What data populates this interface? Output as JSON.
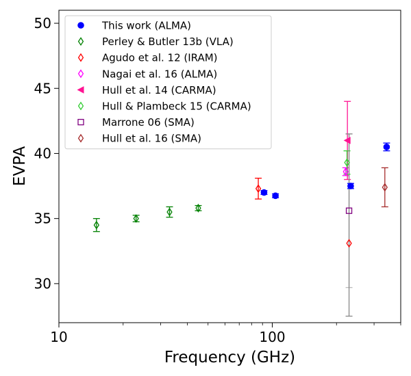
{
  "chart_data": {
    "type": "scatter",
    "title": "",
    "xlabel": "Frequency (GHz)",
    "ylabel": "EVPA",
    "xscale": "log",
    "xlim": [
      10,
      400
    ],
    "ylim": [
      27,
      51
    ],
    "x_ticks": [
      {
        "value": 10,
        "label": "10"
      },
      {
        "value": 100,
        "label": "100"
      }
    ],
    "y_ticks": [
      {
        "value": 30,
        "label": "30"
      },
      {
        "value": 35,
        "label": "35"
      },
      {
        "value": 40,
        "label": "40"
      },
      {
        "value": 45,
        "label": "45"
      },
      {
        "value": 50,
        "label": "50"
      }
    ],
    "legend_position": "top-left",
    "series": [
      {
        "name": "This work (ALMA)",
        "marker": "circle",
        "filled": true,
        "color": "#0000ff",
        "points": [
          {
            "x": 91.5,
            "y": 37.0,
            "err": 0.15
          },
          {
            "x": 103.5,
            "y": 36.75,
            "err": 0.15
          },
          {
            "x": 233,
            "y": 37.5,
            "err": 0.2
          },
          {
            "x": 343.5,
            "y": 40.5,
            "err": 0.3
          }
        ]
      },
      {
        "name": "Perley & Butler 13b (VLA)",
        "marker": "diamond",
        "filled": false,
        "color": "#008000",
        "points": [
          {
            "x": 15,
            "y": 34.5,
            "err": 0.5
          },
          {
            "x": 23,
            "y": 35.0,
            "err": 0.25
          },
          {
            "x": 33,
            "y": 35.5,
            "err": 0.4
          },
          {
            "x": 45,
            "y": 35.8,
            "err": 0.2
          }
        ]
      },
      {
        "name": "Agudo et al. 12 (IRAM)",
        "marker": "diamond",
        "filled": false,
        "color": "#ff0000",
        "points": [
          {
            "x": 86,
            "y": 37.3,
            "err": 0.8
          },
          {
            "x": 229,
            "y": 33.1,
            "err": 0
          }
        ]
      },
      {
        "name": "Nagai et al. 16 (ALMA)",
        "marker": "diamond",
        "filled": false,
        "color": "#ff00ff",
        "points": [
          {
            "x": 221,
            "y": 38.6,
            "err": 0.3
          }
        ]
      },
      {
        "name": "Hull et al. 14 (CARMA)",
        "marker": "triangle-left",
        "filled": true,
        "color": "#ff1493",
        "points": [
          {
            "x": 225,
            "y": 41.0,
            "err": 3.0
          }
        ]
      },
      {
        "name": "Hull & Plambeck 15 (CARMA)",
        "marker": "diamond",
        "filled": false,
        "color": "#32cd32",
        "points": [
          {
            "x": 224,
            "y": 39.3,
            "err": 0.9
          }
        ]
      },
      {
        "name": "Marrone 06 (SMA)",
        "marker": "square",
        "filled": false,
        "color": "#800080",
        "errcolor": "#888888",
        "points": [
          {
            "x": 229,
            "y": 35.6,
            "err_low": 8.1,
            "err_high": 5.9
          }
        ]
      },
      {
        "name": "Hull et al. 16 (SMA)",
        "marker": "diamond",
        "filled": false,
        "color": "#a52a2a",
        "points": [
          {
            "x": 337,
            "y": 37.4,
            "err": 1.5
          }
        ]
      }
    ],
    "extra_error_bars": [
      {
        "x": 229,
        "y_low": 29.7,
        "y_high": 41.5,
        "color": "#bbbbbb"
      }
    ]
  }
}
